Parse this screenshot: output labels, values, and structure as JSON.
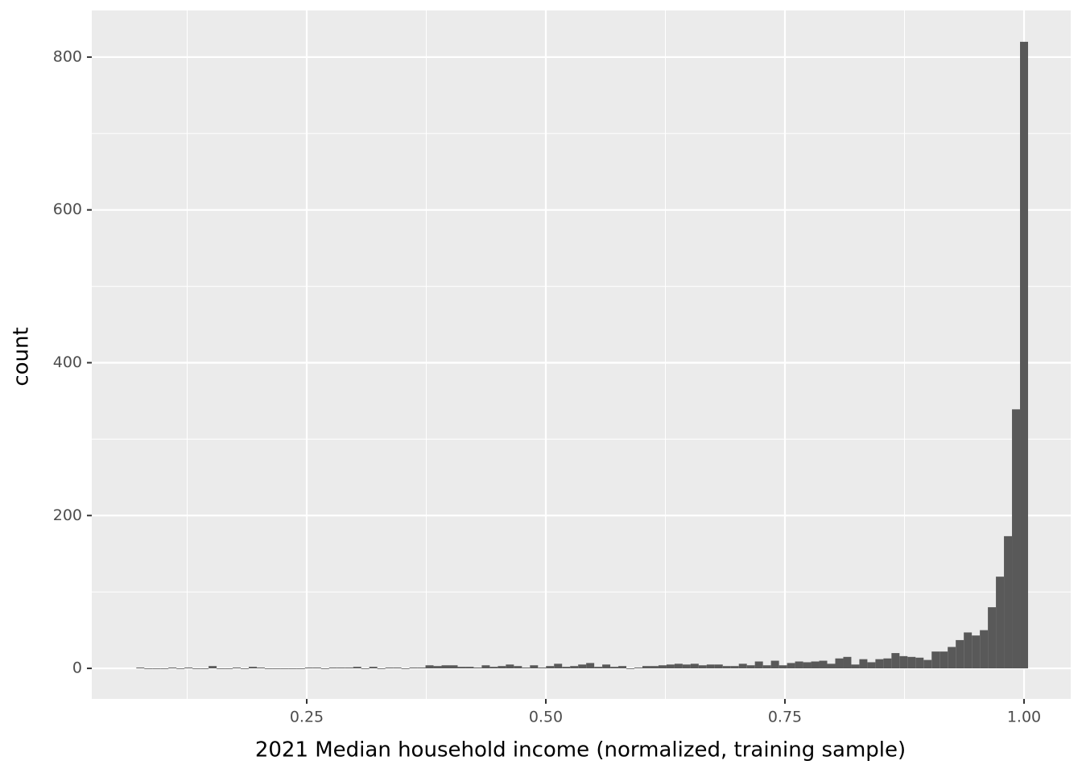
{
  "chart_data": {
    "type": "histogram",
    "x_label": "2021 Median household income (normalized, training sample)",
    "y_label": "count",
    "color": "#595959",
    "bins": [
      0.0718,
      0.0802,
      0.0886,
      0.097,
      0.1054,
      0.1138,
      0.1222,
      0.1306,
      0.139,
      0.1474,
      0.1558,
      0.1642,
      0.1726,
      0.181,
      0.1894,
      0.1978,
      0.2062,
      0.2146,
      0.223,
      0.2314,
      0.2398,
      0.2482,
      0.2566,
      0.265,
      0.2734,
      0.2818,
      0.2902,
      0.2986,
      0.307,
      0.3154,
      0.3238,
      0.3322,
      0.3406,
      0.349,
      0.3574,
      0.3658,
      0.3742,
      0.3826,
      0.391,
      0.3994,
      0.4078,
      0.4162,
      0.4246,
      0.433,
      0.4414,
      0.4498,
      0.4582,
      0.4666,
      0.475,
      0.4834,
      0.4918,
      0.5002,
      0.5086,
      0.517,
      0.5254,
      0.5338,
      0.5422,
      0.5506,
      0.559,
      0.5674,
      0.5758,
      0.5842,
      0.5926,
      0.601,
      0.6094,
      0.6178,
      0.6262,
      0.6346,
      0.643,
      0.6514,
      0.6598,
      0.6682,
      0.6766,
      0.685,
      0.6934,
      0.7018,
      0.7102,
      0.7186,
      0.727,
      0.7354,
      0.7438,
      0.7522,
      0.7606,
      0.769,
      0.7774,
      0.7858,
      0.7942,
      0.8026,
      0.811,
      0.8194,
      0.8278,
      0.8362,
      0.8446,
      0.853,
      0.8614,
      0.8698,
      0.8782,
      0.8866,
      0.895,
      0.9034,
      0.9118,
      0.9202,
      0.9286,
      0.937,
      0.9454,
      0.9538,
      0.9622,
      0.9706,
      0.979,
      0.9874,
      0.9958,
      1.0042
    ],
    "values": [
      1,
      0,
      0,
      0,
      1,
      0,
      1,
      0,
      0,
      3,
      0,
      0,
      1,
      0,
      2,
      1,
      0,
      0,
      0,
      0,
      0,
      1,
      1,
      0,
      1,
      1,
      1,
      2,
      0,
      2,
      0,
      1,
      1,
      0,
      1,
      1,
      4,
      3,
      4,
      4,
      2,
      2,
      1,
      4,
      2,
      3,
      5,
      3,
      1,
      4,
      1,
      3,
      6,
      2,
      3,
      5,
      7,
      2,
      5,
      2,
      3,
      0,
      1,
      3,
      3,
      4,
      5,
      6,
      5,
      6,
      4,
      5,
      5,
      3,
      3,
      6,
      4,
      9,
      4,
      10,
      4,
      7,
      9,
      8,
      9,
      10,
      6,
      13,
      15,
      5,
      12,
      8,
      12,
      13,
      20,
      16,
      15,
      14,
      11,
      22,
      22,
      28,
      37,
      47,
      43,
      50,
      80,
      120,
      173,
      339,
      820
    ],
    "xlim": [
      0.02525,
      1.04882
    ],
    "ylim": [
      -40,
      861
    ],
    "xticks": [
      0.25,
      {
        "value": 0.5,
        "label": "0.50"
      },
      0.75,
      {
        "value": 1,
        "label": "1.00"
      }
    ],
    "yticks": [
      0,
      200,
      400,
      600,
      800
    ],
    "grid": true
  }
}
